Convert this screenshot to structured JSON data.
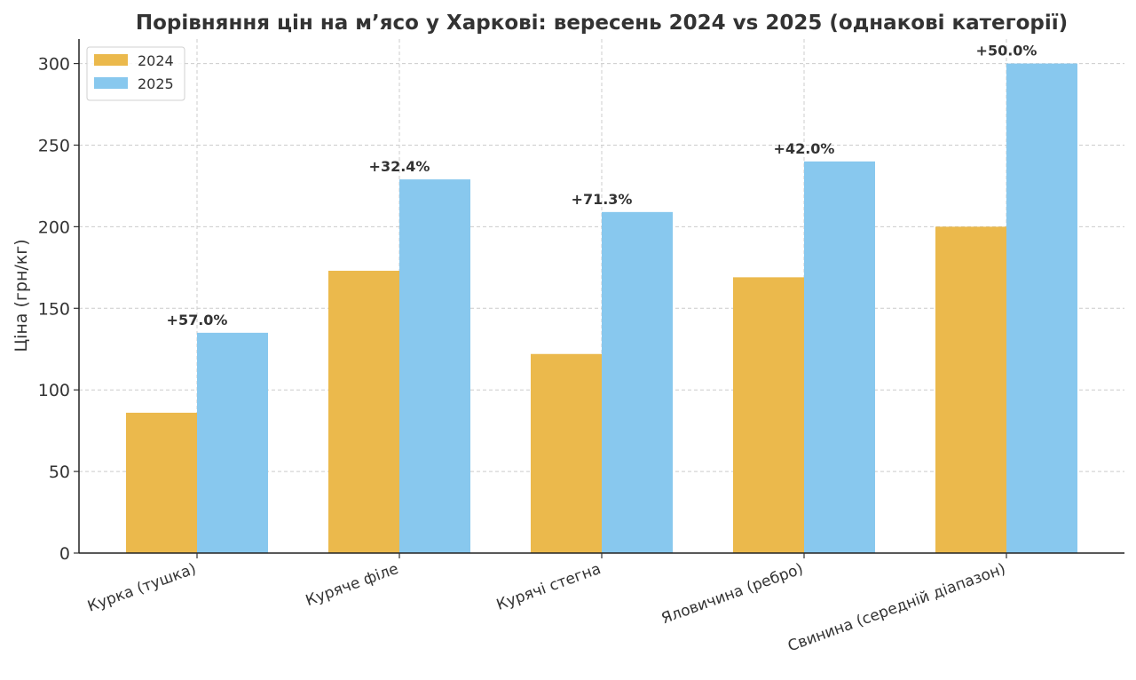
{
  "chart_data": {
    "type": "bar",
    "title": "Порівняння цін на м’ясо у Харкові: вересень 2024 vs 2025 (однакові категорії)",
    "xlabel": "",
    "ylabel": "Ціна (грн/кг)",
    "categories": [
      "Курка (тушка)",
      "Куряче філе",
      "Курячі стегна",
      "Яловичина (ребро)",
      "Свинина (середній діапазон)"
    ],
    "series": [
      {
        "name": "2024",
        "values": [
          86,
          173,
          122,
          169,
          200
        ],
        "color": "#ebb94c"
      },
      {
        "name": "2025",
        "values": [
          135,
          229,
          209,
          240,
          300
        ],
        "color": "#88c8ee"
      }
    ],
    "annotations": [
      "+57.0%",
      "+32.4%",
      "+71.3%",
      "+42.0%",
      "+50.0%"
    ],
    "ylim": [
      0,
      315
    ],
    "yticks": [
      0,
      50,
      100,
      150,
      200,
      250,
      300
    ],
    "grid": true,
    "legend_position": "top-left"
  }
}
